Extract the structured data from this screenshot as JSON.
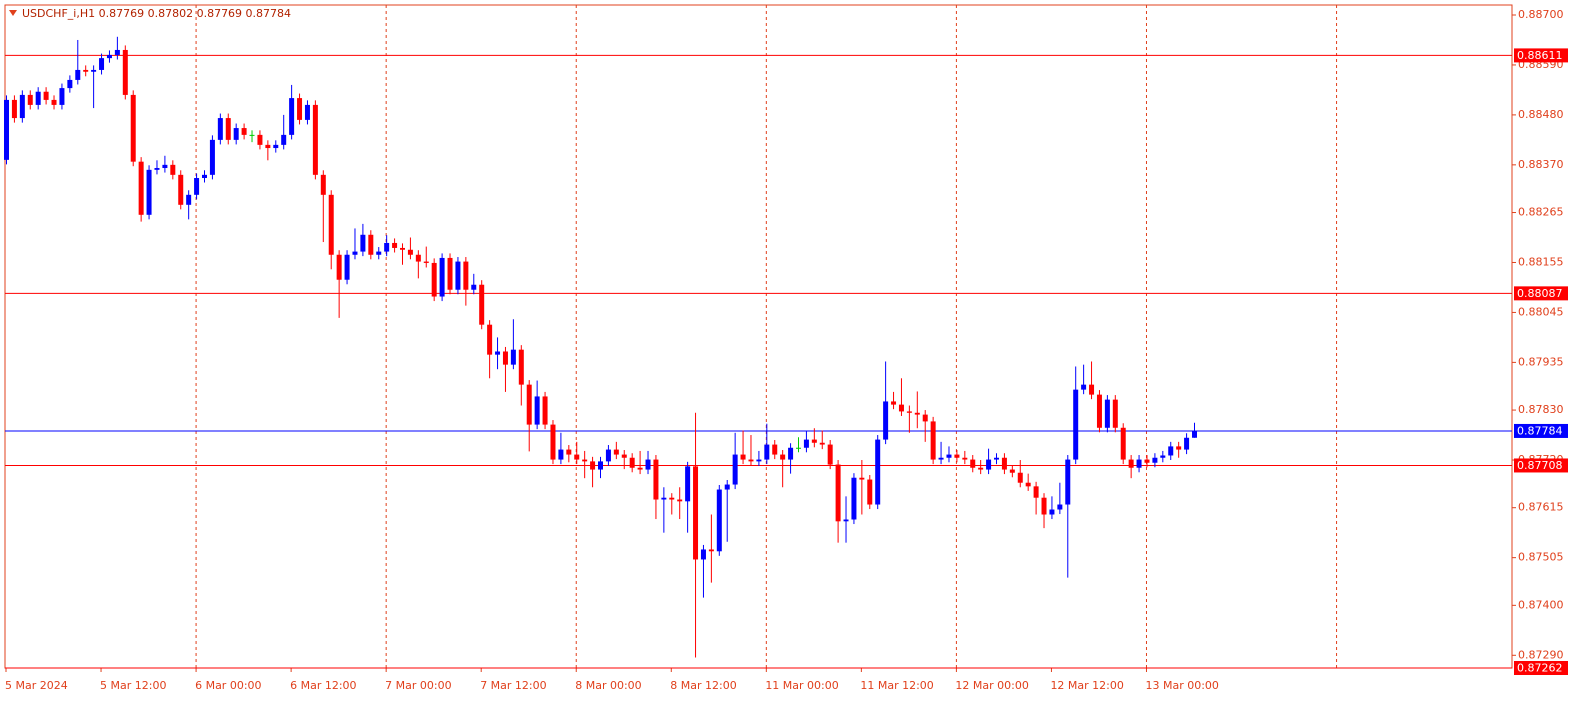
{
  "chart_data": {
    "type": "candlestick",
    "title": "USDCHF_i,H1  0.87769 0.87802 0.87769 0.87784",
    "up_color": "#0000ff",
    "down_color": "#ff0000",
    "doji_color": "#00cc00",
    "ylim": [
      0.87262,
      0.88722
    ],
    "yticks": [
      {
        "value": 0.887,
        "label": "0.88700"
      },
      {
        "value": 0.8859,
        "label": "0.88590"
      },
      {
        "value": 0.8848,
        "label": "0.88480"
      },
      {
        "value": 0.8837,
        "label": "0.88370"
      },
      {
        "value": 0.88265,
        "label": "0.88265"
      },
      {
        "value": 0.88155,
        "label": "0.88155"
      },
      {
        "value": 0.88045,
        "label": "0.88045"
      },
      {
        "value": 0.87935,
        "label": "0.87935"
      },
      {
        "value": 0.8783,
        "label": "0.87830"
      },
      {
        "value": 0.8772,
        "label": "0.87720"
      },
      {
        "value": 0.87615,
        "label": "0.87615"
      },
      {
        "value": 0.87505,
        "label": "0.87505"
      },
      {
        "value": 0.874,
        "label": "0.87400"
      },
      {
        "value": 0.8729,
        "label": "0.87290"
      }
    ],
    "levels": [
      {
        "value": 0.88611,
        "label": "0.88611",
        "color": "#ff0000"
      },
      {
        "value": 0.88087,
        "label": "0.88087",
        "color": "#ff0000"
      },
      {
        "value": 0.87784,
        "label": "0.87784",
        "color": "#0000ff"
      },
      {
        "value": 0.87708,
        "label": "0.87708",
        "color": "#ff0000"
      },
      {
        "value": 0.87262,
        "label": "0.87262",
        "color": "#ff0000"
      }
    ],
    "categories": [
      "5 Mar 2024",
      null,
      null,
      null,
      null,
      null,
      null,
      null,
      null,
      null,
      null,
      null,
      "5 Mar 12:00",
      null,
      null,
      null,
      null,
      null,
      null,
      null,
      null,
      null,
      null,
      null,
      "6 Mar 00:00",
      null,
      null,
      null,
      null,
      null,
      null,
      null,
      null,
      null,
      null,
      null,
      "6 Mar 12:00",
      null,
      null,
      null,
      null,
      null,
      null,
      null,
      null,
      null,
      null,
      null,
      "7 Mar 00:00",
      null,
      null,
      null,
      null,
      null,
      null,
      null,
      null,
      null,
      null,
      null,
      "7 Mar 12:00",
      null,
      null,
      null,
      null,
      null,
      null,
      null,
      null,
      null,
      null,
      null,
      "8 Mar 00:00",
      null,
      null,
      null,
      null,
      null,
      null,
      null,
      null,
      null,
      null,
      null,
      "8 Mar 12:00",
      null,
      null,
      null,
      null,
      null,
      null,
      null,
      null,
      null,
      null,
      null,
      "11 Mar 00:00",
      null,
      null,
      null,
      null,
      null,
      null,
      null,
      null,
      null,
      null,
      null,
      "11 Mar 12:00",
      null,
      null,
      null,
      null,
      null,
      null,
      null,
      null,
      null,
      null,
      null,
      "12 Mar 00:00",
      null,
      null,
      null,
      null,
      null,
      null,
      null,
      null,
      null,
      null,
      null,
      "12 Mar 12:00",
      null,
      null,
      null,
      null,
      null,
      null,
      null,
      null,
      null,
      null,
      null,
      "13 Mar 00:00",
      null,
      null,
      null,
      null,
      null,
      null
    ],
    "open": [
      0.88381,
      0.88513,
      0.88473,
      0.88524,
      0.88502,
      0.88531,
      0.88513,
      0.88502,
      0.88539,
      0.88557,
      0.88579,
      0.88575,
      0.88579,
      0.88605,
      0.88612,
      0.88623,
      0.88524,
      0.88377,
      0.8826,
      0.88359,
      0.88363,
      0.8837,
      0.88348,
      0.88282,
      0.88304,
      0.88341,
      0.88348,
      0.88425,
      0.88473,
      0.88425,
      0.88451,
      0.88436,
      0.88436,
      0.88414,
      0.88407,
      0.88414,
      0.88436,
      0.88517,
      0.88469,
      0.88502,
      0.88348,
      0.88304,
      0.88172,
      0.88117,
      0.88172,
      0.88179,
      0.88216,
      0.88172,
      0.88179,
      0.88198,
      0.88187,
      0.88183,
      0.88172,
      0.88157,
      0.88154,
      0.8808,
      0.88165,
      0.88095,
      0.88157,
      0.88095,
      0.88106,
      0.88018,
      0.87952,
      0.87959,
      0.8793,
      0.87963,
      0.87886,
      0.87798,
      0.8786,
      0.87798,
      0.87721,
      0.87743,
      0.87732,
      0.87721,
      0.87717,
      0.87699,
      0.87717,
      0.87743,
      0.87732,
      0.87725,
      0.87703,
      0.87699,
      0.87721,
      0.87633,
      0.87637,
      0.87633,
      0.87629,
      0.87706,
      0.87501,
      0.87523,
      0.87519,
      0.87655,
      0.87666,
      0.87732,
      0.87721,
      0.87717,
      0.87721,
      0.87754,
      0.87732,
      0.87721,
      0.87747,
      0.87747,
      0.87765,
      0.87758,
      0.87754,
      0.8771,
      0.87585,
      0.87589,
      0.87681,
      0.87677,
      0.87622,
      0.87765,
      0.87849,
      0.87842,
      0.87827,
      0.87824,
      0.8782,
      0.87805,
      0.87721,
      0.87725,
      0.87732,
      0.87725,
      0.87721,
      0.87703,
      0.87699,
      0.87721,
      0.87725,
      0.87699,
      0.87692,
      0.8767,
      0.87662,
      0.87637,
      0.876,
      0.87611,
      0.87622,
      0.87721,
      0.87875,
      0.87886,
      0.87864,
      0.87791,
      0.87853,
      0.87791,
      0.87721,
      0.87703,
      0.87721,
      0.87714,
      0.87725,
      0.8773,
      0.8775,
      0.87743,
      0.87769
    ],
    "high": [
      0.88523,
      0.88523,
      0.88534,
      0.88534,
      0.88541,
      0.88541,
      0.88523,
      0.88549,
      0.88567,
      0.88645,
      0.88589,
      0.88589,
      0.88615,
      0.88622,
      0.88652,
      0.88633,
      0.88534,
      0.88387,
      0.88369,
      0.8838,
      0.8839,
      0.8838,
      0.88358,
      0.88314,
      0.88351,
      0.88358,
      0.88435,
      0.88483,
      0.88483,
      0.88461,
      0.88461,
      0.88446,
      0.88446,
      0.88424,
      0.88424,
      0.8848,
      0.88546,
      0.88527,
      0.88512,
      0.88512,
      0.88358,
      0.88314,
      0.88182,
      0.88182,
      0.8823,
      0.8824,
      0.88226,
      0.88189,
      0.88215,
      0.88208,
      0.88197,
      0.8821,
      0.88182,
      0.8819,
      0.88164,
      0.88175,
      0.88175,
      0.88167,
      0.88167,
      0.8813,
      0.88116,
      0.88028,
      0.8799,
      0.87969,
      0.8803,
      0.87973,
      0.87896,
      0.87895,
      0.8787,
      0.87808,
      0.8778,
      0.87753,
      0.8776,
      0.8774,
      0.87727,
      0.87727,
      0.87753,
      0.8776,
      0.87742,
      0.87735,
      0.8774,
      0.8774,
      0.87731,
      0.8766,
      0.87647,
      0.8766,
      0.87716,
      0.87824,
      0.87533,
      0.876,
      0.87665,
      0.87676,
      0.8778,
      0.87785,
      0.87775,
      0.8774,
      0.878,
      0.87764,
      0.87742,
      0.87757,
      0.8777,
      0.87785,
      0.8779,
      0.87785,
      0.87764,
      0.8772,
      0.8764,
      0.87691,
      0.8772,
      0.87687,
      0.87775,
      0.87937,
      0.8787,
      0.879,
      0.8784,
      0.87871,
      0.8783,
      0.87815,
      0.8776,
      0.8775,
      0.87742,
      0.8774,
      0.87731,
      0.8772,
      0.87745,
      0.87735,
      0.87735,
      0.87709,
      0.8772,
      0.8769,
      0.87672,
      0.87647,
      0.8764,
      0.8767,
      0.87731,
      0.87926,
      0.8793,
      0.87937,
      0.87874,
      0.87863,
      0.87863,
      0.87801,
      0.87731,
      0.87731,
      0.87731,
      0.87735,
      0.8774,
      0.8776,
      0.8776,
      0.87779,
      0.87802
    ],
    "low": [
      0.88371,
      0.88463,
      0.88463,
      0.88492,
      0.88492,
      0.88503,
      0.88492,
      0.88492,
      0.88529,
      0.88547,
      0.88565,
      0.88495,
      0.88569,
      0.88595,
      0.88602,
      0.88514,
      0.88367,
      0.88245,
      0.8825,
      0.88349,
      0.88353,
      0.88338,
      0.88272,
      0.8825,
      0.88294,
      0.88331,
      0.88338,
      0.88415,
      0.88415,
      0.88415,
      0.88426,
      0.8842,
      0.88404,
      0.8838,
      0.88397,
      0.88404,
      0.88426,
      0.88459,
      0.88459,
      0.88338,
      0.882,
      0.8814,
      0.88033,
      0.88107,
      0.88162,
      0.88169,
      0.88162,
      0.88162,
      0.88169,
      0.88177,
      0.8815,
      0.88162,
      0.8812,
      0.88144,
      0.8807,
      0.8807,
      0.88085,
      0.88085,
      0.8806,
      0.88085,
      0.88008,
      0.879,
      0.8792,
      0.8787,
      0.8792,
      0.8784,
      0.87739,
      0.87788,
      0.87788,
      0.87711,
      0.87711,
      0.87715,
      0.87711,
      0.8768,
      0.8766,
      0.8768,
      0.87707,
      0.87722,
      0.877,
      0.87693,
      0.87689,
      0.87689,
      0.8759,
      0.8756,
      0.876,
      0.8759,
      0.8756,
      0.87285,
      0.87417,
      0.8745,
      0.87509,
      0.8754,
      0.87656,
      0.87711,
      0.87707,
      0.87707,
      0.87711,
      0.87722,
      0.8766,
      0.8769,
      0.87737,
      0.87737,
      0.87748,
      0.87744,
      0.877,
      0.87538,
      0.87538,
      0.87579,
      0.876,
      0.87612,
      0.87612,
      0.87755,
      0.87832,
      0.87817,
      0.8778,
      0.8779,
      0.8776,
      0.87711,
      0.87711,
      0.87715,
      0.87715,
      0.87711,
      0.87693,
      0.87689,
      0.87689,
      0.87711,
      0.87689,
      0.87682,
      0.8766,
      0.87652,
      0.876,
      0.8757,
      0.8759,
      0.87601,
      0.87461,
      0.87711,
      0.87865,
      0.87854,
      0.87781,
      0.87781,
      0.87781,
      0.87711,
      0.8768,
      0.87693,
      0.87704,
      0.87704,
      0.87715,
      0.8772,
      0.87725,
      0.87733,
      0.87769
    ],
    "close": [
      0.88513,
      0.88473,
      0.88524,
      0.88502,
      0.88531,
      0.88513,
      0.88502,
      0.88539,
      0.88557,
      0.88579,
      0.88575,
      0.88579,
      0.88605,
      0.88612,
      0.88623,
      0.88524,
      0.88377,
      0.8826,
      0.88359,
      0.88363,
      0.8837,
      0.88348,
      0.88282,
      0.88304,
      0.88341,
      0.88348,
      0.88425,
      0.88473,
      0.88425,
      0.88451,
      0.88436,
      0.88436,
      0.88414,
      0.88407,
      0.88414,
      0.88436,
      0.88517,
      0.88469,
      0.88502,
      0.88348,
      0.88304,
      0.88172,
      0.88117,
      0.88172,
      0.88179,
      0.88216,
      0.88172,
      0.88179,
      0.88198,
      0.88187,
      0.88183,
      0.88172,
      0.88157,
      0.88154,
      0.8808,
      0.88165,
      0.88095,
      0.88157,
      0.88095,
      0.88106,
      0.88018,
      0.87952,
      0.87959,
      0.8793,
      0.87963,
      0.87886,
      0.87798,
      0.8786,
      0.87798,
      0.87721,
      0.87743,
      0.87732,
      0.87721,
      0.87717,
      0.87699,
      0.87717,
      0.87743,
      0.87732,
      0.87725,
      0.87703,
      0.87699,
      0.87721,
      0.87633,
      0.87637,
      0.87633,
      0.87629,
      0.87706,
      0.87501,
      0.87523,
      0.87519,
      0.87655,
      0.87666,
      0.87732,
      0.87721,
      0.87717,
      0.87721,
      0.87754,
      0.87732,
      0.87721,
      0.87747,
      0.87747,
      0.87765,
      0.87758,
      0.87754,
      0.8771,
      0.87585,
      0.87589,
      0.87681,
      0.87677,
      0.87622,
      0.87765,
      0.87849,
      0.87842,
      0.87827,
      0.87824,
      0.8782,
      0.87805,
      0.87721,
      0.87725,
      0.87732,
      0.87725,
      0.87721,
      0.87703,
      0.87699,
      0.87721,
      0.87725,
      0.87699,
      0.87692,
      0.8767,
      0.87662,
      0.87637,
      0.876,
      0.87611,
      0.87622,
      0.87721,
      0.87875,
      0.87886,
      0.87864,
      0.87791,
      0.87853,
      0.87791,
      0.87721,
      0.87703,
      0.87721,
      0.87714,
      0.87725,
      0.8773,
      0.8775,
      0.87743,
      0.87769,
      0.87784
    ]
  }
}
